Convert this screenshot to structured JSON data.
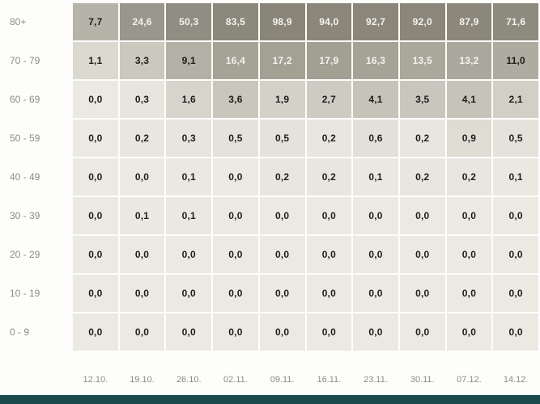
{
  "page": {
    "background": "#fdfdfb",
    "footer_bar_color": "#1a4a4c"
  },
  "chart_data": {
    "type": "heatmap",
    "title": "",
    "xlabel": "",
    "ylabel": "",
    "x_labels": [
      "12.10.",
      "19.10.",
      "26.10.",
      "02.11.",
      "09.11.",
      "16.11.",
      "23.11.",
      "30.11.",
      "07.12.",
      "14.12."
    ],
    "y_labels": [
      "80+",
      "70 - 79",
      "60 - 69",
      "50 - 59",
      "40 - 49",
      "30 - 39",
      "20 - 29",
      "10 - 19",
      "0 - 9"
    ],
    "rows": [
      {
        "label": "80+",
        "values": [
          7.7,
          24.6,
          50.3,
          83.5,
          98.9,
          94.0,
          92.7,
          92.0,
          87.9,
          71.6
        ]
      },
      {
        "label": "70 - 79",
        "values": [
          1.1,
          3.3,
          9.1,
          16.4,
          17.2,
          17.9,
          16.3,
          13.5,
          13.2,
          11.0
        ]
      },
      {
        "label": "60 - 69",
        "values": [
          0.0,
          0.3,
          1.6,
          3.6,
          1.9,
          2.7,
          4.1,
          3.5,
          4.1,
          2.1
        ]
      },
      {
        "label": "50 - 59",
        "values": [
          0.0,
          0.2,
          0.3,
          0.5,
          0.5,
          0.2,
          0.6,
          0.2,
          0.9,
          0.5
        ]
      },
      {
        "label": "40 - 49",
        "values": [
          0.0,
          0.0,
          0.1,
          0.0,
          0.2,
          0.2,
          0.1,
          0.2,
          0.2,
          0.1
        ]
      },
      {
        "label": "30 - 39",
        "values": [
          0.0,
          0.1,
          0.1,
          0.0,
          0.0,
          0.0,
          0.0,
          0.0,
          0.0,
          0.0
        ]
      },
      {
        "label": "20 - 29",
        "values": [
          0.0,
          0.0,
          0.0,
          0.0,
          0.0,
          0.0,
          0.0,
          0.0,
          0.0,
          0.0
        ]
      },
      {
        "label": "10 - 19",
        "values": [
          0.0,
          0.0,
          0.0,
          0.0,
          0.0,
          0.0,
          0.0,
          0.0,
          0.0,
          0.0
        ]
      },
      {
        "label": "0 - 9",
        "values": [
          0.0,
          0.0,
          0.0,
          0.0,
          0.0,
          0.0,
          0.0,
          0.0,
          0.0,
          0.0
        ]
      }
    ],
    "value_format": "1 decimal place, comma as decimal separator",
    "grid": "off",
    "legend": "none",
    "color_scale": {
      "stops": [
        [
          0,
          "#ebe9e2"
        ],
        [
          1,
          "#dcdad1"
        ],
        [
          2,
          "#d3d1c7"
        ],
        [
          4,
          "#c6c4b9"
        ],
        [
          8,
          "#b5b2a7"
        ],
        [
          12,
          "#acaa9e"
        ],
        [
          18,
          "#a29f93"
        ],
        [
          25,
          "#98958a"
        ],
        [
          50,
          "#908d82"
        ],
        [
          100,
          "#898679"
        ]
      ],
      "light_text_threshold": 13,
      "dark_text": "#1d1d1b",
      "light_text": "#f4f3f0"
    }
  }
}
